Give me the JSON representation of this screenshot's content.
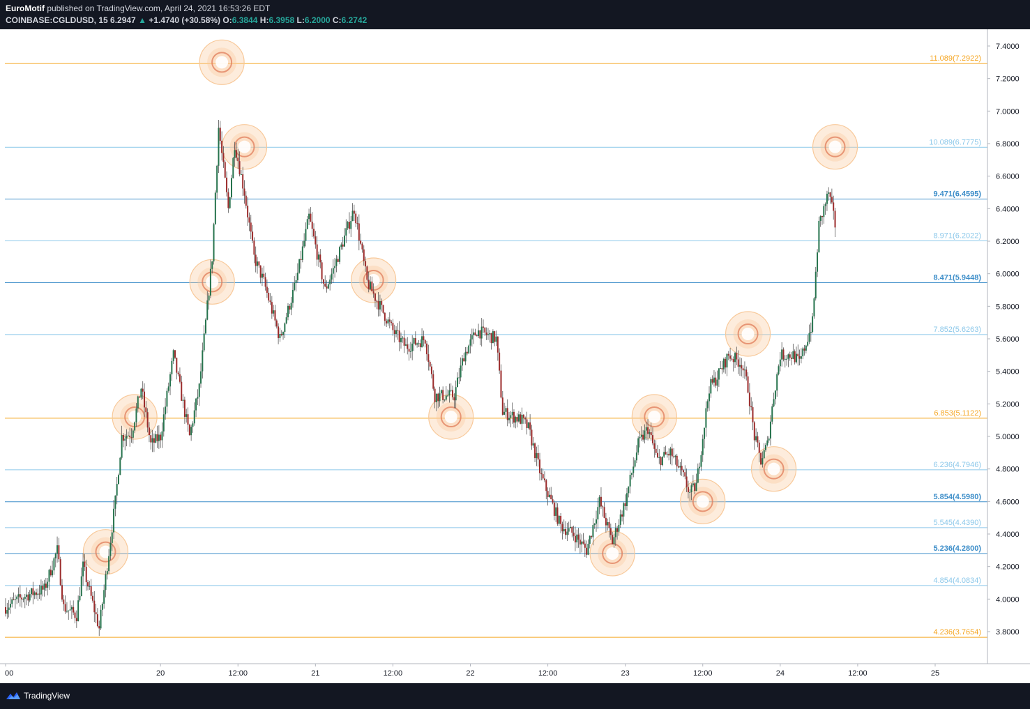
{
  "header": {
    "author": "EuroMotif",
    "published_text": " published on TradingView.com, April 24, 2021 16:53:26 EDT",
    "symbol": "COINBASE:CGLDUSD, 15",
    "last_price": "6.2947",
    "change": "+1.4740 (+30.58%)",
    "open_label": "O:",
    "open": "6.3844",
    "high_label": "H:",
    "high": "6.3958",
    "low_label": "L:",
    "low": "6.2000",
    "close_label": "C:",
    "close": "6.2742"
  },
  "footer": {
    "brand": "TradingView"
  },
  "colors": {
    "up": "#26734d",
    "down": "#9b2c2c",
    "fib_blue_light": "#8cc8ea",
    "fib_blue_dark": "#3d8ec9",
    "fib_orange": "#f5a623",
    "circle_fill": "#f8c99a",
    "circle_ring": "#e07c5a"
  },
  "chart_data": {
    "type": "candlestick",
    "symbol": "COINBASE:CGLDUSD",
    "interval": "15",
    "ylim": [
      3.6,
      7.5
    ],
    "y_ticks": [
      "3.8000",
      "4.0000",
      "4.2000",
      "4.4000",
      "4.6000",
      "4.8000",
      "5.0000",
      "5.2000",
      "5.4000",
      "5.6000",
      "5.8000",
      "6.0000",
      "6.2000",
      "6.4000",
      "6.6000",
      "6.8000",
      "7.0000",
      "7.2000",
      "7.4000"
    ],
    "x_ticks": [
      "00",
      "20",
      "12:00",
      "21",
      "12:00",
      "22",
      "12:00",
      "23",
      "12:00",
      "24",
      "12:00",
      "25"
    ],
    "x_tick_hours": [
      0,
      24,
      36,
      48,
      60,
      72,
      84,
      96,
      108,
      120,
      132,
      144
    ],
    "x_range_hours": [
      0,
      141
    ],
    "price_path": [
      [
        0,
        3.95
      ],
      [
        3,
        4.02
      ],
      [
        6,
        4.06
      ],
      [
        8,
        4.3
      ],
      [
        9,
        3.95
      ],
      [
        11,
        3.9
      ],
      [
        12,
        4.2
      ],
      [
        14.5,
        3.82
      ],
      [
        17,
        4.6
      ],
      [
        18,
        5.0
      ],
      [
        19.5,
        5.02
      ],
      [
        21,
        5.3
      ],
      [
        22.5,
        4.95
      ],
      [
        24,
        5.0
      ],
      [
        26,
        5.5
      ],
      [
        28.5,
        5.0
      ],
      [
        30,
        5.3
      ],
      [
        32,
        6.1
      ],
      [
        33,
        6.9
      ],
      [
        34.5,
        6.4
      ],
      [
        35.5,
        6.8
      ],
      [
        37,
        6.5
      ],
      [
        38.5,
        6.1
      ],
      [
        40,
        5.95
      ],
      [
        42.5,
        5.6
      ],
      [
        45,
        5.95
      ],
      [
        47,
        6.35
      ],
      [
        49.5,
        5.9
      ],
      [
        51,
        6.05
      ],
      [
        54,
        6.4
      ],
      [
        56,
        5.95
      ],
      [
        58,
        5.8
      ],
      [
        60,
        5.65
      ],
      [
        62,
        5.55
      ],
      [
        65,
        5.6
      ],
      [
        66.5,
        5.25
      ],
      [
        69.5,
        5.25
      ],
      [
        71,
        5.5
      ],
      [
        73,
        5.65
      ],
      [
        76,
        5.6
      ],
      [
        77,
        5.15
      ],
      [
        80,
        5.1
      ],
      [
        81,
        5.05
      ],
      [
        83,
        4.75
      ],
      [
        84,
        4.65
      ],
      [
        86,
        4.45
      ],
      [
        88,
        4.4
      ],
      [
        90,
        4.3
      ],
      [
        92,
        4.6
      ],
      [
        94,
        4.35
      ],
      [
        96,
        4.6
      ],
      [
        98,
        4.95
      ],
      [
        99.5,
        5.05
      ],
      [
        101,
        4.85
      ],
      [
        103,
        4.9
      ],
      [
        105,
        4.75
      ],
      [
        106,
        4.65
      ],
      [
        107,
        4.7
      ],
      [
        108,
        5.0
      ],
      [
        109,
        5.3
      ],
      [
        110,
        5.35
      ],
      [
        112,
        5.5
      ],
      [
        114,
        5.45
      ],
      [
        115,
        5.3
      ],
      [
        116,
        5.0
      ],
      [
        117,
        4.85
      ],
      [
        118,
        4.95
      ],
      [
        119,
        5.25
      ],
      [
        120,
        5.5
      ],
      [
        122,
        5.5
      ],
      [
        123,
        5.45
      ],
      [
        125,
        5.7
      ],
      [
        126,
        6.3
      ],
      [
        127.5,
        6.5
      ],
      [
        128.5,
        6.3
      ]
    ],
    "fib_levels": [
      {
        "label": "11.089(7.2922)",
        "value": 7.2922,
        "color": "orange"
      },
      {
        "label": "10.089(6.7775)",
        "value": 6.7775,
        "color": "blue-light"
      },
      {
        "label": "9.471(6.4595)",
        "value": 6.4595,
        "color": "blue-dark"
      },
      {
        "label": "8.971(6.2022)",
        "value": 6.2022,
        "color": "blue-light"
      },
      {
        "label": "8.471(5.9448)",
        "value": 5.9448,
        "color": "blue-dark"
      },
      {
        "label": "7.852(5.6263)",
        "value": 5.6263,
        "color": "blue-light"
      },
      {
        "label": "6.853(5.1122)",
        "value": 5.1122,
        "color": "orange"
      },
      {
        "label": "6.236(4.7946)",
        "value": 4.7946,
        "color": "blue-light"
      },
      {
        "label": "5.854(4.5980)",
        "value": 4.598,
        "color": "blue-dark"
      },
      {
        "label": "5.545(4.4390)",
        "value": 4.439,
        "color": "blue-light"
      },
      {
        "label": "5.236(4.2800)",
        "value": 4.28,
        "color": "blue-dark"
      },
      {
        "label": "4.854(4.0834)",
        "value": 4.0834,
        "color": "blue-light"
      },
      {
        "label": "4.236(3.7654)",
        "value": 3.7654,
        "color": "orange"
      }
    ],
    "marked_points": [
      {
        "hour": 15.5,
        "price": 4.29
      },
      {
        "hour": 20.0,
        "price": 5.12
      },
      {
        "hour": 33.5,
        "price": 7.3
      },
      {
        "hour": 37.0,
        "price": 6.78
      },
      {
        "hour": 32.0,
        "price": 5.95
      },
      {
        "hour": 57.0,
        "price": 5.96
      },
      {
        "hour": 69.0,
        "price": 5.12
      },
      {
        "hour": 94.0,
        "price": 4.28
      },
      {
        "hour": 100.5,
        "price": 5.12
      },
      {
        "hour": 108.0,
        "price": 4.6
      },
      {
        "hour": 115.0,
        "price": 5.63
      },
      {
        "hour": 119.0,
        "price": 4.8
      },
      {
        "hour": 128.5,
        "price": 6.78
      }
    ]
  }
}
